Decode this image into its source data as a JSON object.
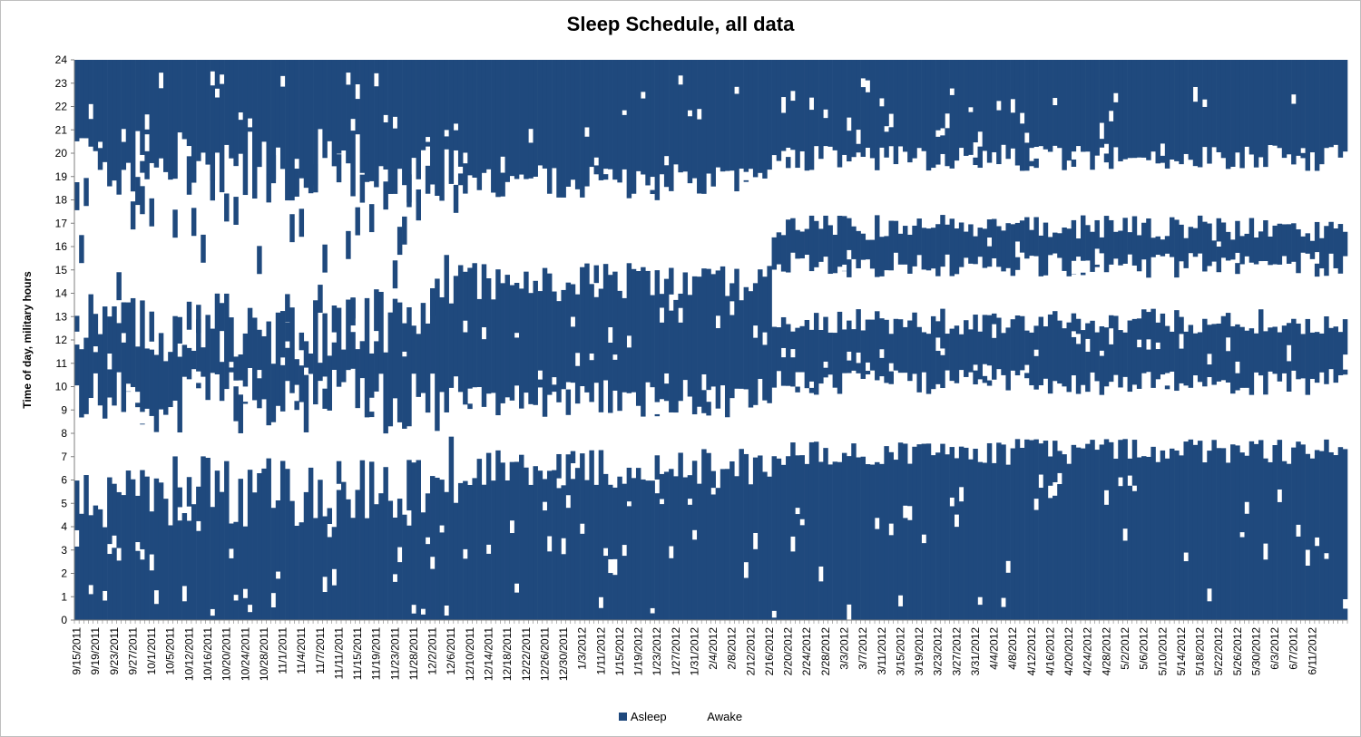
{
  "colors": {
    "asleep": "#1f497d",
    "awake": "#ffffff",
    "axis": "#7f7f7f"
  },
  "chart_data": {
    "type": "heatmap",
    "title": "Sleep Schedule, all data",
    "xlabel": "",
    "ylabel": "Time of day, military hours",
    "ylim": [
      0,
      24
    ],
    "y_ticks": [
      "0",
      "1",
      "2",
      "3",
      "4",
      "5",
      "6",
      "7",
      "8",
      "9",
      "10",
      "11",
      "12",
      "13",
      "14",
      "15",
      "16",
      "17",
      "18",
      "19",
      "20",
      "21",
      "22",
      "23",
      "24"
    ],
    "x_range": [
      "9/15/2011",
      "6/13/2012"
    ],
    "x_tick_interval_days": 4,
    "x_tick_labels": [
      "9/15/2011",
      "9/19/2011",
      "9/23/2011",
      "9/27/2011",
      "10/1/2011",
      "10/5/2011",
      "10/12/2011",
      "10/16/2011",
      "10/20/2011",
      "10/24/2011",
      "10/28/2011",
      "11/1/2011",
      "11/4/2011",
      "11/7/2011",
      "11/11/2011",
      "11/15/2011",
      "11/19/2011",
      "11/23/2011",
      "11/28/2011",
      "12/2/2011",
      "12/6/2011",
      "12/10/2011",
      "12/14/2011",
      "12/18/2011",
      "12/22/2011",
      "12/26/2011",
      "12/30/2011",
      "1/3/2012",
      "1/11/2012",
      "1/15/2012",
      "1/19/2012",
      "1/23/2012",
      "1/27/2012",
      "1/31/2012",
      "2/4/2012",
      "2/8/2012",
      "2/12/2012",
      "2/16/2012",
      "2/20/2012",
      "2/24/2012",
      "2/28/2012",
      "3/3/2012",
      "3/7/2012",
      "3/11/2012",
      "3/15/2012",
      "3/19/2012",
      "3/23/2012",
      "3/27/2012",
      "3/31/2012",
      "4/4/2012",
      "4/8/2012",
      "4/12/2012",
      "4/16/2012",
      "4/20/2012",
      "4/24/2012",
      "4/28/2012",
      "5/2/2012",
      "5/6/2012",
      "5/10/2012",
      "5/14/2012",
      "5/18/2012",
      "5/22/2012",
      "5/26/2012",
      "5/30/2012",
      "6/3/2012",
      "6/7/2012",
      "6/11/2012"
    ],
    "series": [
      {
        "name": "Asleep",
        "color": "#1f497d"
      },
      {
        "name": "Awake",
        "color": "#ffffff"
      }
    ],
    "legend_position": "bottom",
    "typical_sleep_blocks": [
      {
        "from": "9/15/2011",
        "to": "12/5/2011",
        "blocks": [
          [
            0,
            5.5
          ],
          [
            9.5,
            12.5
          ],
          [
            19.5,
            24
          ]
        ]
      },
      {
        "from": "12/6/2011",
        "to": "2/10/2012",
        "blocks": [
          [
            0,
            6.5
          ],
          [
            9.5,
            14.5
          ],
          [
            18.8,
            24
          ]
        ]
      },
      {
        "from": "2/11/2012",
        "to": "6/13/2012",
        "blocks": [
          [
            0,
            7.2
          ],
          [
            10.2,
            12.8
          ],
          [
            15.2,
            16.8
          ],
          [
            19.8,
            24
          ]
        ]
      }
    ]
  }
}
